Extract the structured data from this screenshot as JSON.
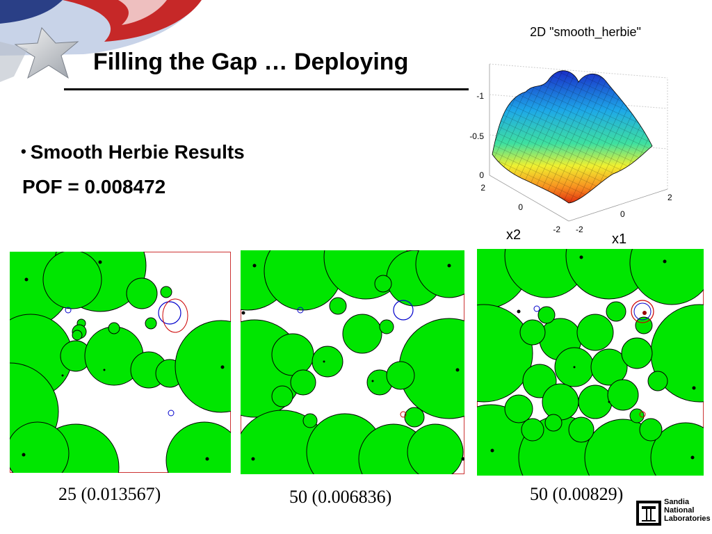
{
  "slide": {
    "title": "Filling the Gap … Deploying",
    "bullet": "Smooth Herbie Results",
    "pof": "POF = 0.008472"
  },
  "plot3d": {
    "title": "2D \"smooth_herbie\"",
    "z_ticks": [
      "-1",
      "-0.5",
      "0"
    ],
    "x2_ticks": [
      "2",
      "0",
      "-2"
    ],
    "x1_ticks": [
      "-2",
      "0",
      "2"
    ],
    "x2_label": "x2",
    "x1_label": "x1"
  },
  "panels": [
    {
      "caption": "25 (0.013567)"
    },
    {
      "caption": "50 (0.006836)"
    },
    {
      "caption": "50 (0.00829)"
    }
  ],
  "logo": {
    "line1": "Sandia",
    "line2": "National",
    "line3": "Laboratories"
  },
  "colors": {
    "sphere_fill": "#00e600",
    "failure_red": "#cc0000",
    "failure_blue": "#0000cc"
  }
}
